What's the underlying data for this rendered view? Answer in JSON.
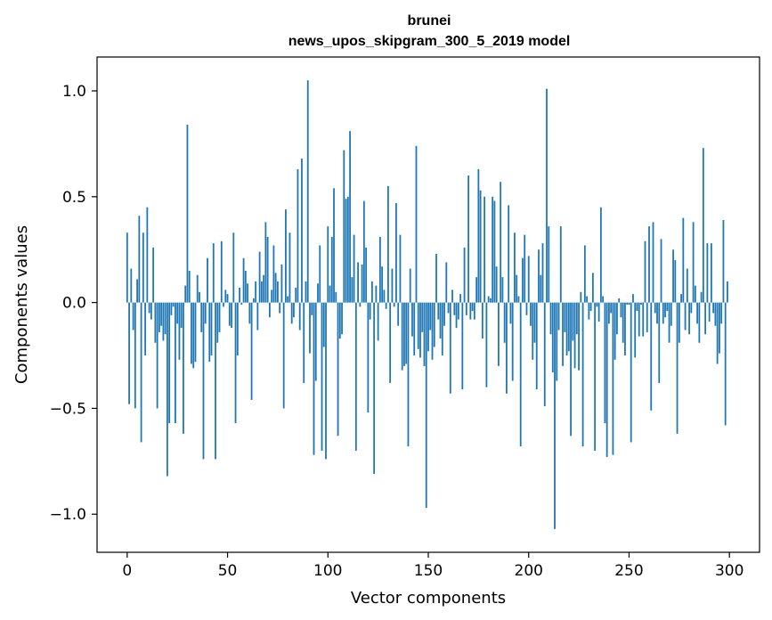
{
  "chart_data": {
    "type": "bar",
    "title": "brunei",
    "subtitle": "news_upos_skipgram_300_5_2019 model",
    "xlabel": "Vector components",
    "ylabel": "Components values",
    "xlim": [
      -15,
      315
    ],
    "ylim": [
      -1.18,
      1.16
    ],
    "x_ticks": [
      0,
      50,
      100,
      150,
      200,
      250,
      300
    ],
    "x_tick_labels": [
      "0",
      "50",
      "100",
      "150",
      "200",
      "250",
      "300"
    ],
    "y_ticks": [
      -1.0,
      -0.5,
      0.0,
      0.5,
      1.0
    ],
    "y_tick_labels": [
      "−1.0",
      "−0.5",
      "0.0",
      "0.5",
      "1.0"
    ],
    "grid": false,
    "legend": "none",
    "bar_color": "#1f77b4",
    "categories_count": 300,
    "values": [
      0.33,
      -0.48,
      0.16,
      -0.13,
      -0.5,
      0.11,
      0.41,
      -0.66,
      0.33,
      -0.25,
      0.45,
      -0.05,
      -0.08,
      0.26,
      -0.19,
      -0.5,
      -0.14,
      -0.11,
      -0.18,
      -0.15,
      -0.82,
      -0.57,
      -0.06,
      -0.02,
      -0.57,
      -0.1,
      -0.27,
      -0.12,
      -0.62,
      0.08,
      0.84,
      0.15,
      -0.29,
      -0.31,
      -0.28,
      0.13,
      0.05,
      -0.14,
      -0.74,
      -0.1,
      0.21,
      -0.28,
      -0.25,
      0.28,
      -0.74,
      -0.19,
      -0.14,
      0.29,
      -0.02,
      0.06,
      0.04,
      -0.11,
      -0.12,
      0.33,
      -0.57,
      -0.25,
      0.07,
      -0.01,
      0.21,
      0.15,
      0.09,
      -0.1,
      -0.46,
      0.02,
      0.1,
      -0.13,
      0.24,
      0.1,
      0.13,
      0.38,
      0.31,
      -0.07,
      0.06,
      0.27,
      0.14,
      0.1,
      -0.05,
      0.18,
      -0.5,
      0.44,
      0.03,
      0.33,
      -0.1,
      -0.07,
      0.07,
      0.63,
      -0.13,
      0.68,
      -0.38,
      0.1,
      1.05,
      -0.24,
      -0.06,
      -0.72,
      -0.37,
      0.09,
      0.27,
      -0.7,
      -0.21,
      -0.74,
      0.36,
      0.08,
      0.31,
      0.54,
      0.05,
      -0.63,
      -0.17,
      -0.15,
      0.72,
      0.49,
      0.5,
      0.81,
      0.12,
      0.32,
      -0.7,
      0.19,
      -0.02,
      0.18,
      0.48,
      0.26,
      -0.52,
      -0.08,
      0.1,
      -0.81,
      0.08,
      -0.18,
      0.31,
      0.17,
      0.06,
      -0.03,
      0.55,
      -0.38,
      0.16,
      -0.02,
      0.47,
      -0.11,
      0.32,
      -0.32,
      -0.3,
      -0.29,
      -0.68,
      0.16,
      -0.16,
      -0.25,
      0.74,
      -0.22,
      -0.26,
      -0.14,
      -0.3,
      -0.97,
      -0.23,
      -0.13,
      -0.27,
      -0.21,
      0.23,
      -0.08,
      -0.17,
      -0.25,
      -0.11,
      0.19,
      -0.05,
      -0.43,
      0.06,
      -0.06,
      -0.12,
      -0.08,
      0.04,
      -0.41,
      0.26,
      -0.06,
      0.6,
      -0.08,
      -0.04,
      -0.08,
      0.12,
      0.63,
      0.53,
      -0.17,
      0.5,
      -0.4,
      0.03,
      0.02,
      0.5,
      0.48,
      0.17,
      -0.3,
      0.57,
      0.12,
      -0.19,
      -0.43,
      0.46,
      -0.1,
      -0.37,
      0.33,
      0.13,
      0.03,
      -0.68,
      0.21,
      0.32,
      -0.06,
      0.22,
      -0.11,
      -0.27,
      -0.19,
      -0.41,
      0.25,
      0.13,
      0.28,
      -0.49,
      1.01,
      0.36,
      -0.15,
      -0.33,
      -1.07,
      -0.37,
      -0.13,
      0.36,
      -0.3,
      -0.14,
      -0.25,
      -0.23,
      -0.63,
      -0.18,
      -0.31,
      -0.15,
      -0.32,
      0.05,
      -0.68,
      0.27,
      0.03,
      -0.08,
      -0.04,
      0.14,
      -0.7,
      -0.02,
      -0.09,
      0.45,
      0.03,
      -0.57,
      -0.73,
      -0.1,
      -0.05,
      -0.72,
      -0.27,
      -0.15,
      0.02,
      -0.07,
      -0.19,
      -0.25,
      -0.01,
      -0.01,
      -0.66,
      0.04,
      -0.26,
      -0.04,
      -0.16,
      -0.01,
      -0.16,
      0.29,
      -0.14,
      0.36,
      -0.51,
      0.38,
      -0.05,
      -0.1,
      -0.38,
      0.3,
      -0.1,
      -0.07,
      -0.04,
      -0.19,
      -0.11,
      0.25,
      0.2,
      -0.62,
      -0.19,
      0.04,
      0.4,
      -0.13,
      0.16,
      -0.15,
      -0.05,
      0.38,
      0.08,
      -0.1,
      -0.19,
      0.05,
      0.73,
      -0.15,
      0.28,
      -0.09,
      0.28,
      -0.05,
      -0.11,
      -0.29,
      -0.24,
      -0.1,
      0.39,
      -0.58,
      0.1
    ]
  }
}
